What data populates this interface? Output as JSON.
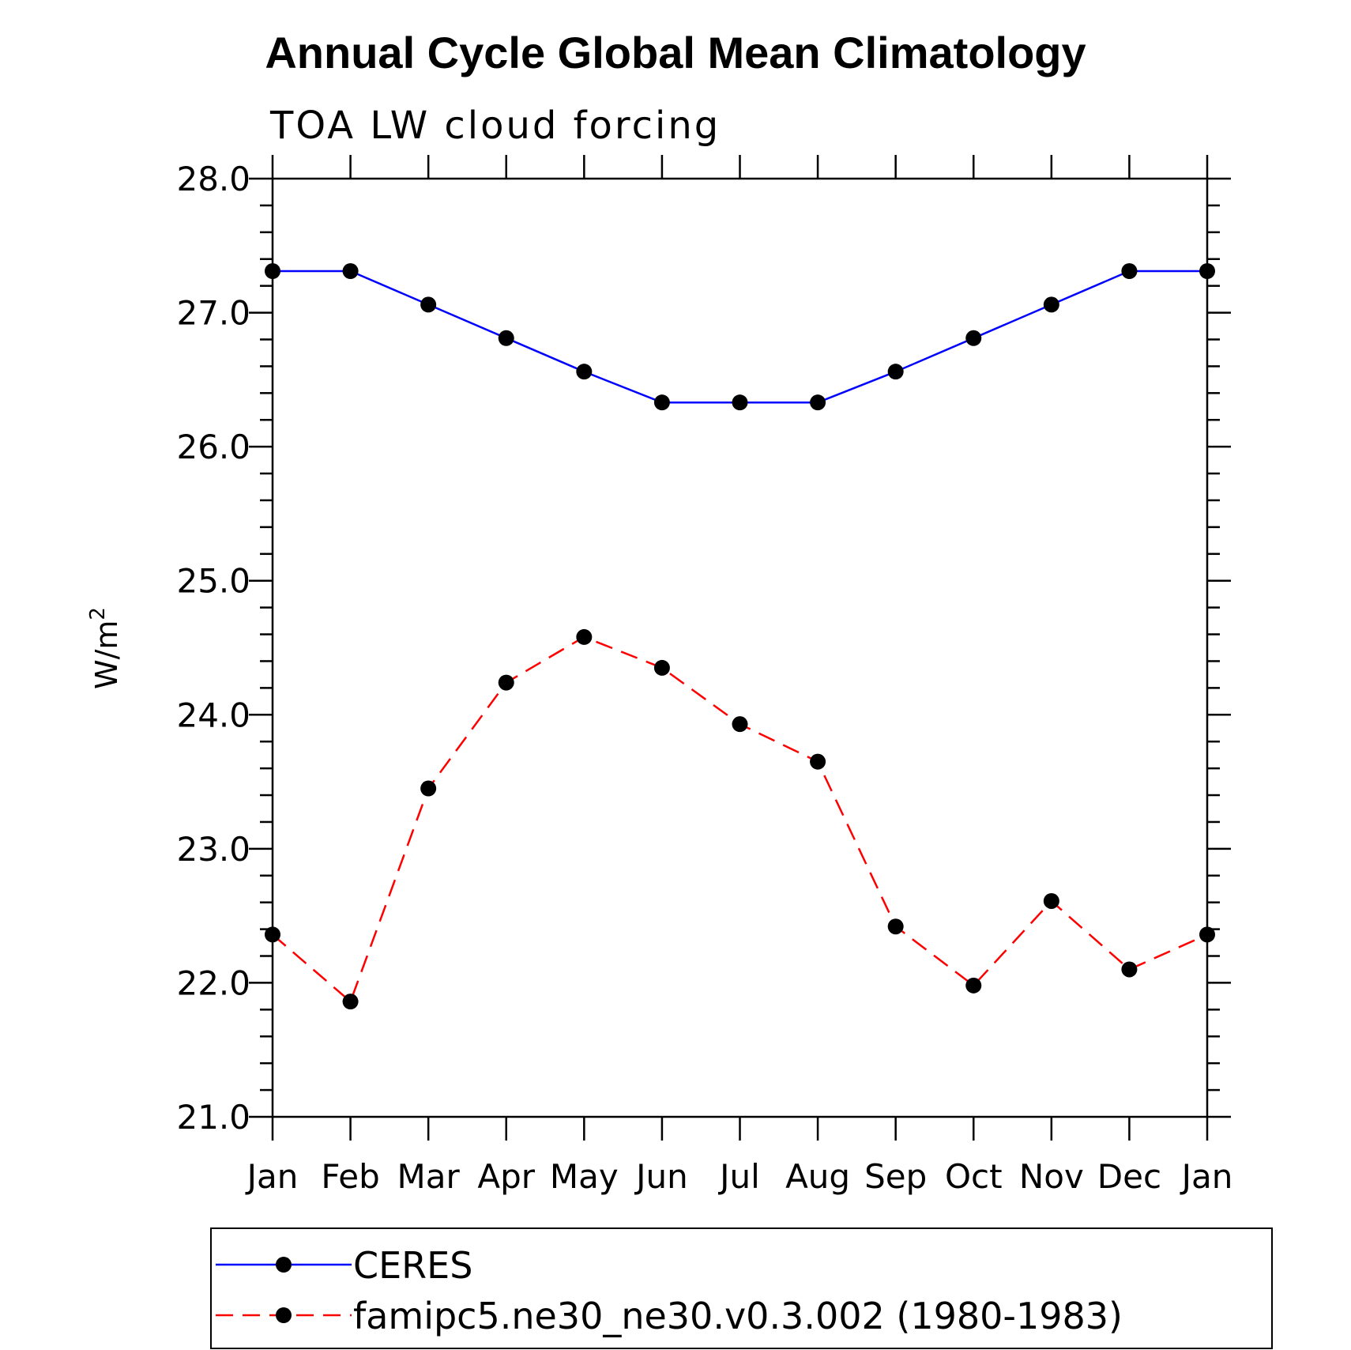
{
  "chart_data": {
    "type": "line",
    "title": "Annual Cycle Global Mean Climatology",
    "subtitle": "TOA LW cloud forcing",
    "ylabel_base": "W/m",
    "ylabel_sup": "2",
    "xlabel": "",
    "categories": [
      "Jan",
      "Feb",
      "Mar",
      "Apr",
      "May",
      "Jun",
      "Jul",
      "Aug",
      "Sep",
      "Oct",
      "Nov",
      "Dec",
      "Jan"
    ],
    "ylim": [
      21.0,
      28.0
    ],
    "yticks": [
      "21.0",
      "22.0",
      "23.0",
      "24.0",
      "25.0",
      "26.0",
      "27.0",
      "28.0"
    ],
    "series": [
      {
        "name": "CERES",
        "color": "#0000ff",
        "dashed": false,
        "values": [
          27.31,
          27.31,
          27.06,
          26.81,
          26.56,
          26.33,
          26.33,
          26.33,
          26.56,
          26.81,
          27.06,
          27.31,
          27.31
        ]
      },
      {
        "name": "famipc5.ne30_ne30.v0.3.002 (1980-1983)",
        "color": "#ff0000",
        "dashed": true,
        "values": [
          22.36,
          21.86,
          23.45,
          24.24,
          24.58,
          24.35,
          23.93,
          23.65,
          22.42,
          21.98,
          22.61,
          22.1,
          22.36
        ]
      }
    ],
    "legend_position": "bottom",
    "marker_color": "#000000"
  }
}
